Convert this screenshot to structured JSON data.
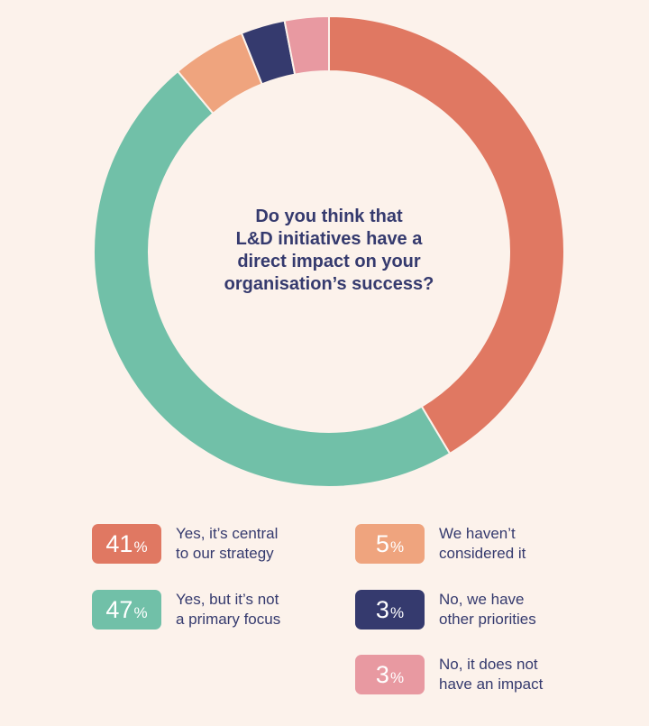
{
  "question": "Do you think that\nL&D initiatives have a\ndirect impact on your\norganisation’s success?",
  "chart_data": {
    "type": "pie",
    "donut": true,
    "title": "Do you think that L&D initiatives have a direct impact on your organisation’s success?",
    "slices": [
      {
        "label": "Yes, it’s central\nto our strategy",
        "value": 41,
        "color": "#E07862"
      },
      {
        "label": "Yes, but it’s not\na primary focus",
        "value": 47,
        "color": "#71C0A8"
      },
      {
        "label": "We haven’t\nconsidered it",
        "value": 5,
        "color": "#EFA47E"
      },
      {
        "label": "No, we have\nother priorities",
        "value": 3,
        "color": "#353A6E"
      },
      {
        "label": "No, it does not\nhave an impact",
        "value": 3,
        "color": "#E899A1"
      }
    ],
    "pct_symbol": "%",
    "legend_placement": "bottom"
  }
}
